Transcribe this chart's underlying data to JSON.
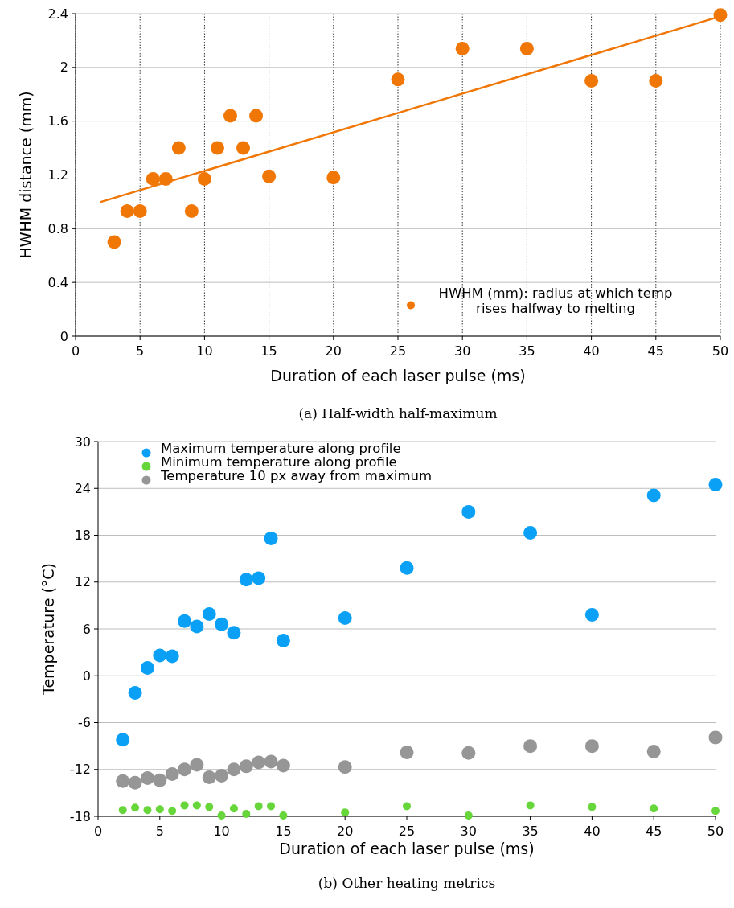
{
  "chart_data": [
    {
      "type": "scatter",
      "xlabel": "Duration of each laser pulse (ms)",
      "ylabel": "HWHM distance (mm)",
      "annotations": [
        "(a) Half-width half-maximum"
      ],
      "xlim": [
        0,
        50
      ],
      "xticks": [
        0,
        5,
        10,
        15,
        20,
        25,
        30,
        35,
        40,
        45,
        50
      ],
      "ylim": [
        0,
        2.4
      ],
      "yticks": [
        0,
        0.4,
        0.8,
        1.2,
        1.6,
        2,
        2.4
      ],
      "grid": true,
      "legend": "bottom right",
      "marker": "circle",
      "series": [
        {
          "name": "HWHM (mm): radius at which temp rises halfway to melting",
          "color": "#f07605",
          "x": [
            3,
            4,
            5,
            6,
            7,
            8,
            9,
            10,
            11,
            12,
            13,
            14,
            15,
            20,
            25,
            30,
            35,
            40,
            45,
            50
          ],
          "values": [
            0.7,
            0.93,
            0.93,
            1.17,
            1.17,
            1.4,
            0.93,
            1.17,
            1.4,
            1.64,
            1.4,
            1.64,
            1.19,
            1.18,
            1.91,
            2.14,
            2.14,
            1.9,
            1.9,
            2.39
          ]
        },
        {
          "type": "line",
          "marker": "none",
          "color": "#f07605",
          "x": [
            2,
            50
          ],
          "values": [
            1.0,
            2.38
          ]
        }
      ]
    },
    {
      "type": "scatter",
      "xlabel": "Duration of each laser pulse (ms)",
      "ylabel": "Temperature (°C)",
      "annotations": [
        "(b) Other heating metrics"
      ],
      "xlim": [
        0,
        50
      ],
      "xticks": [
        0,
        5,
        10,
        15,
        20,
        25,
        30,
        35,
        40,
        45,
        50
      ],
      "ylim": [
        -18,
        30
      ],
      "yticks": [
        -18,
        -12,
        -6,
        0,
        6,
        12,
        18,
        24,
        30
      ],
      "grid": "y",
      "legend": "top left",
      "marker": "circle",
      "x": [
        2,
        3,
        4,
        5,
        6,
        7,
        8,
        9,
        10,
        11,
        12,
        13,
        14,
        15,
        20,
        25,
        30,
        35,
        40,
        45,
        50
      ],
      "series": [
        {
          "name": "Maximum temperature along profile",
          "color": "#0aa0f5",
          "values": [
            -8.2,
            -2.2,
            1.0,
            2.6,
            2.5,
            7.0,
            6.3,
            7.9,
            6.6,
            5.5,
            12.3,
            12.5,
            17.6,
            4.5,
            7.4,
            13.8,
            21.0,
            18.3,
            7.8,
            23.1,
            24.5
          ]
        },
        {
          "name": "Minimum temperature along profile",
          "color": "#66d63a",
          "values": [
            -17.2,
            -16.9,
            -17.2,
            -17.1,
            -17.3,
            -16.6,
            -16.6,
            -16.8,
            -17.9,
            -17.0,
            -17.7,
            -16.7,
            -16.7,
            -17.9,
            -17.5,
            -16.7,
            -17.9,
            -16.6,
            -16.8,
            -17.0,
            -17.3
          ]
        },
        {
          "name": "Temperature 10 px away from maximum",
          "color": "#969696",
          "values": [
            -13.5,
            -13.7,
            -13.1,
            -13.4,
            -12.6,
            -12.0,
            -11.4,
            -13.0,
            -12.8,
            -12.0,
            -11.6,
            -11.1,
            -11.0,
            -11.5,
            -11.7,
            -9.8,
            -9.9,
            -9.0,
            -9.0,
            -9.7,
            -7.9
          ]
        }
      ]
    }
  ]
}
